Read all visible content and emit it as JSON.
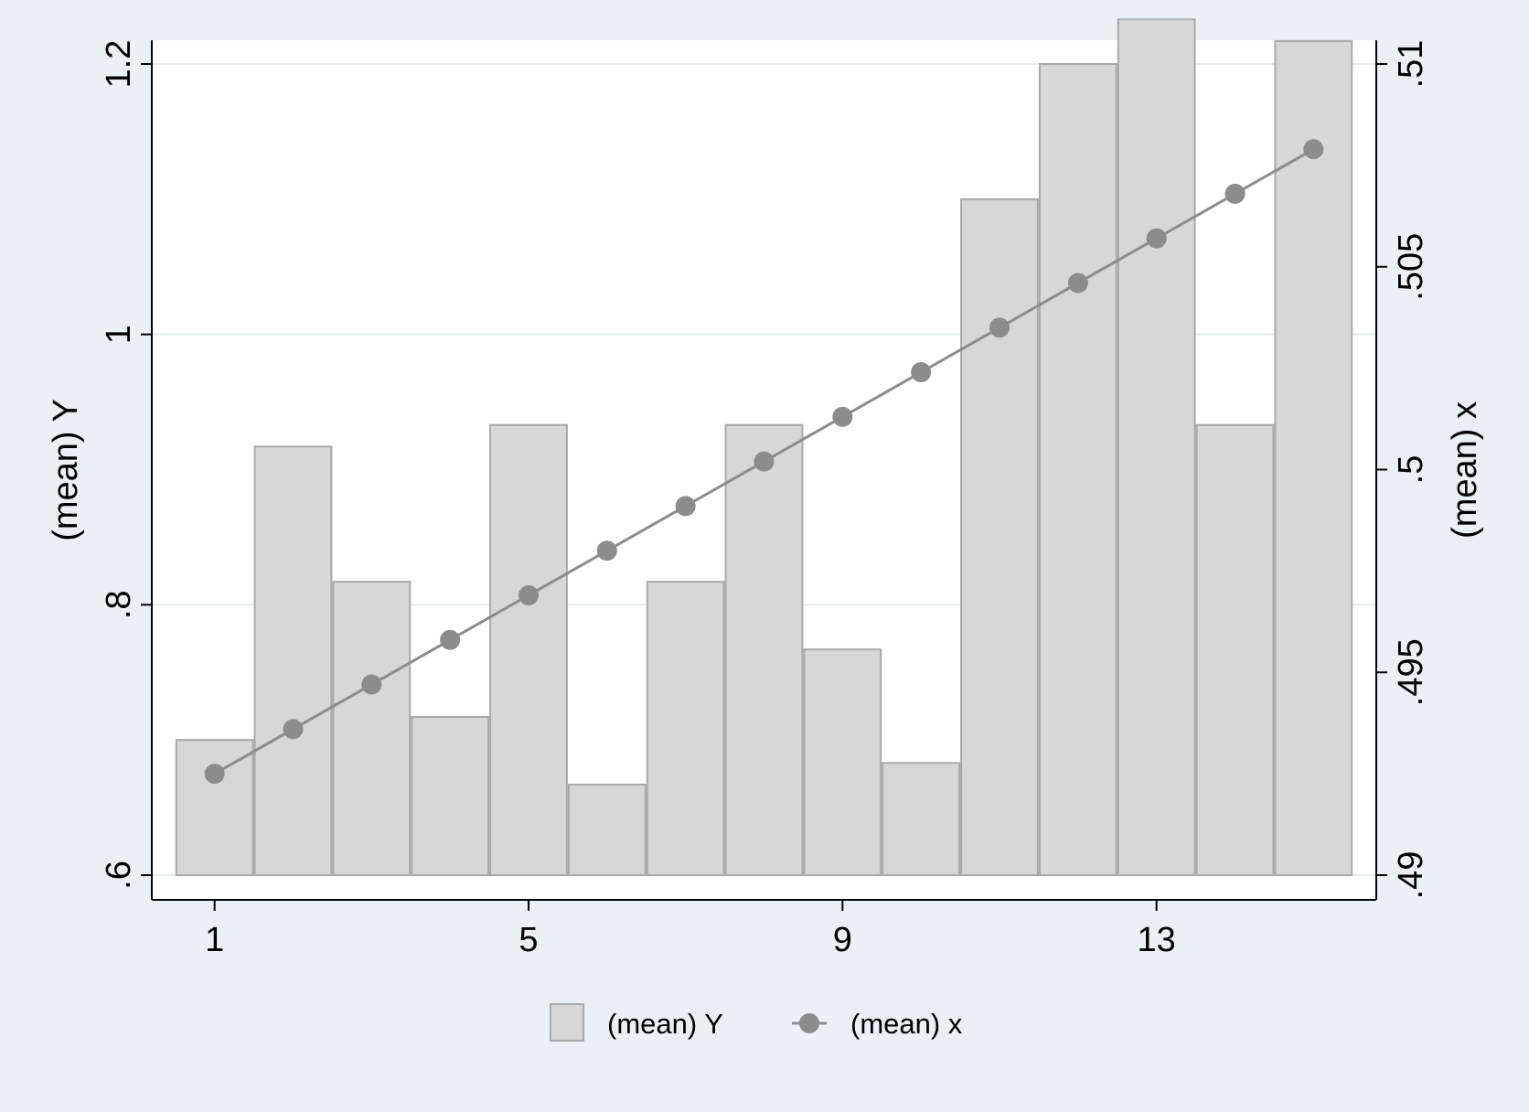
{
  "colors": {
    "page_background": "#eaf0f3",
    "plot_background": "#ffffff",
    "gridline": "#e3ece9",
    "bar_fill": "#d7d7d7",
    "bar_stroke": "#a9a9a9",
    "line": "#8c8c8c",
    "marker": "#8c8c8c",
    "axis": "#000000"
  },
  "icons": {
    "legend_bar": "grey-square-swatch-icon",
    "legend_line": "line-with-dot-icon"
  },
  "chart_data": {
    "type": "bar",
    "combined_with": "line",
    "x": [
      1,
      2,
      3,
      4,
      5,
      6,
      7,
      8,
      9,
      10,
      11,
      12,
      13,
      14,
      15
    ],
    "xticks": [
      "1",
      "5",
      "9",
      "13"
    ],
    "xtick_values": [
      1,
      5,
      9,
      13
    ],
    "xlim": [
      0.2,
      15.8
    ],
    "title": "",
    "xlabel": "",
    "ylabel_left": "(mean) Y",
    "ylabel_right": "(mean) x",
    "ylim_left": [
      0.6,
      1.2
    ],
    "ylim_right": [
      0.49,
      0.51
    ],
    "yticks_left": [
      ".6",
      ".8",
      "1",
      "1.2"
    ],
    "ytick_values_left": [
      0.6,
      0.8,
      1.0,
      1.2
    ],
    "yticks_right": [
      ".49",
      ".495",
      ".5",
      ".505",
      ".51"
    ],
    "ytick_values_right": [
      0.49,
      0.495,
      0.5,
      0.505,
      0.51
    ],
    "grid": "horizontal, left axis",
    "legend_position": "bottom",
    "series": [
      {
        "name": "(mean) Y",
        "type": "bar",
        "axis": "left",
        "values": [
          0.7,
          0.917,
          0.817,
          0.717,
          0.933,
          0.667,
          0.817,
          0.933,
          0.767,
          0.683,
          1.1,
          1.2,
          1.233,
          0.933,
          1.217
        ]
      },
      {
        "name": "(mean) x",
        "type": "line",
        "axis": "right",
        "values": [
          0.4925,
          0.4936,
          0.4947,
          0.4958,
          0.4969,
          0.498,
          0.4991,
          0.5002,
          0.5013,
          0.5024,
          0.5035,
          0.5046,
          0.5057,
          0.5068,
          0.5079
        ]
      }
    ]
  }
}
